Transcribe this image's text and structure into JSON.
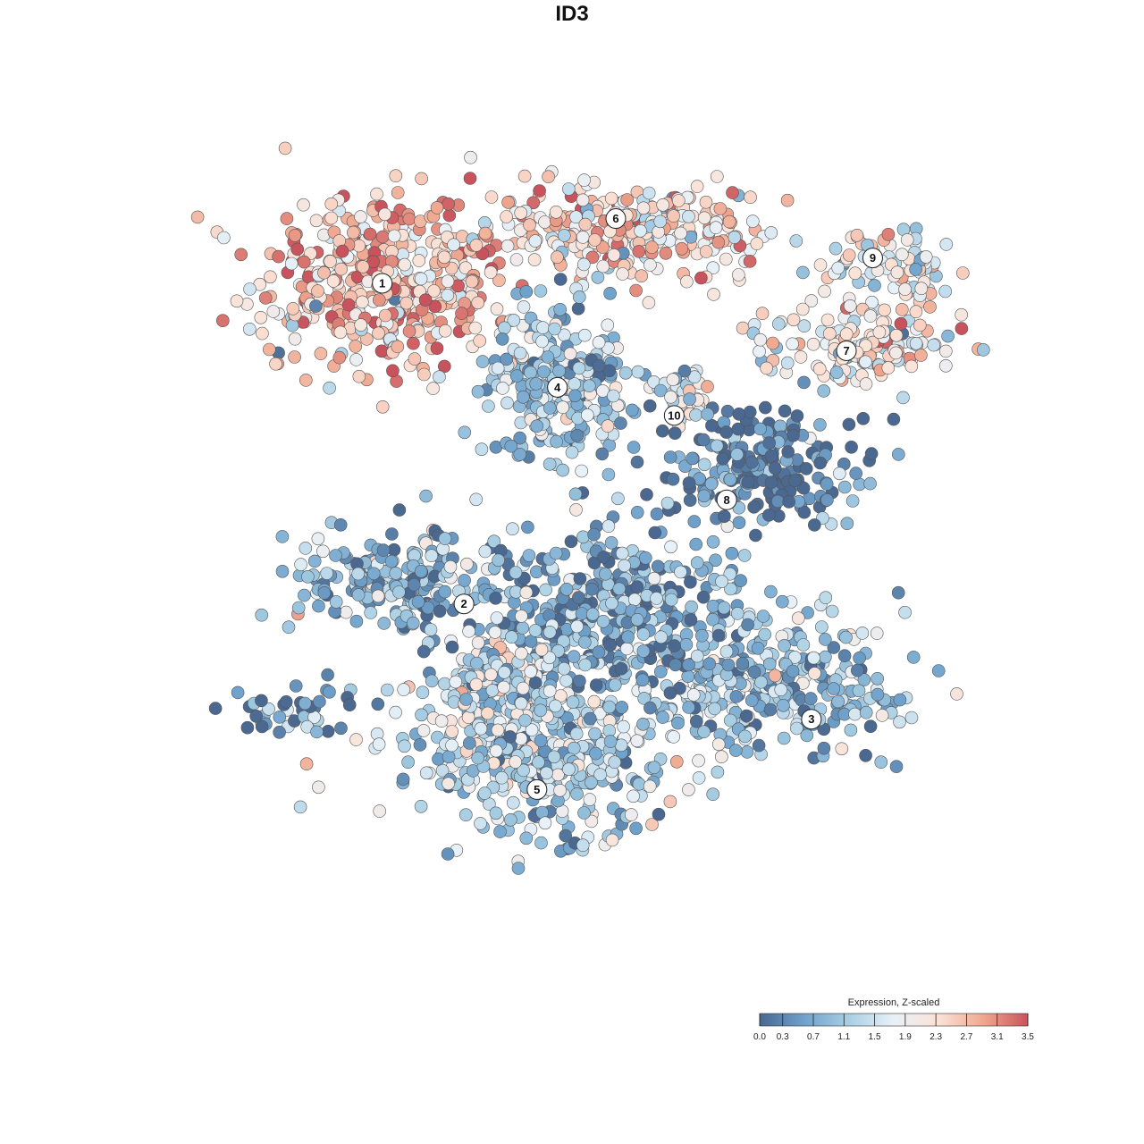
{
  "chart_data": {
    "type": "scatter",
    "title": "ID3",
    "legend": {
      "title": "Expression, Z-scaled",
      "ticks": [
        "0.0",
        "0.3",
        "0.7",
        "1.1",
        "1.5",
        "1.9",
        "2.3",
        "2.7",
        "3.1",
        "3.5"
      ],
      "range": [
        0.0,
        3.5
      ],
      "colors": [
        "#4a6890",
        "#6fa2cc",
        "#a9cfe4",
        "#e8f1f8",
        "#fbe2d6",
        "#f0a890",
        "#c9535c"
      ],
      "placement": "bottom-right"
    },
    "clusters": [
      {
        "label": "1",
        "cx": -6.5,
        "cy": 7.2,
        "sx": 2.2,
        "sy": 1.6,
        "mean": 2.6,
        "n": 420
      },
      {
        "label": "6",
        "cx": 2.0,
        "cy": 9.0,
        "sx": 2.6,
        "sy": 0.9,
        "mean": 2.3,
        "n": 300
      },
      {
        "label": "9",
        "cx": 11.0,
        "cy": 7.8,
        "sx": 1.1,
        "sy": 0.8,
        "mean": 2.0,
        "n": 90
      },
      {
        "label": "7",
        "cx": 10.0,
        "cy": 5.0,
        "sx": 1.7,
        "sy": 0.7,
        "mean": 2.0,
        "n": 150
      },
      {
        "label": "4",
        "cx": -0.5,
        "cy": 3.6,
        "sx": 1.2,
        "sy": 1.3,
        "mean": 1.1,
        "n": 260
      },
      {
        "label": "10",
        "cx": 3.8,
        "cy": 3.3,
        "sx": 0.5,
        "sy": 0.6,
        "mean": 1.8,
        "n": 40
      },
      {
        "label": "8",
        "cx": 6.5,
        "cy": 0.8,
        "sx": 1.9,
        "sy": 1.1,
        "mean": 0.2,
        "n": 220
      },
      {
        "label": "2",
        "cx": -5.8,
        "cy": -3.4,
        "sx": 1.9,
        "sy": 1.0,
        "mean": 0.8,
        "n": 220
      },
      {
        "label": "3",
        "cx": 6.8,
        "cy": -7.2,
        "sx": 2.4,
        "sy": 1.2,
        "mean": 1.0,
        "n": 320
      },
      {
        "label": "5",
        "cx": -1.0,
        "cy": -9.5,
        "sx": 2.3,
        "sy": 1.3,
        "mean": 1.2,
        "n": 420
      },
      {
        "label": "",
        "cx": 1.5,
        "cy": -4.5,
        "sx": 2.2,
        "sy": 1.5,
        "mean": 0.6,
        "n": 360
      },
      {
        "label": "",
        "cx": -2.4,
        "cy": -6.8,
        "sx": 1.2,
        "sy": 1.2,
        "mean": 1.5,
        "n": 160
      },
      {
        "label": "",
        "cx": -9.5,
        "cy": -8.0,
        "sx": 1.0,
        "sy": 0.6,
        "mean": 0.5,
        "n": 40
      }
    ],
    "label_positions": [
      {
        "label": "1",
        "x": -6.5,
        "y": 7.2
      },
      {
        "label": "6",
        "x": 1.5,
        "y": 9.5
      },
      {
        "label": "9",
        "x": 10.3,
        "y": 8.1
      },
      {
        "label": "7",
        "x": 9.4,
        "y": 4.8
      },
      {
        "label": "4",
        "x": -0.5,
        "y": 3.5
      },
      {
        "label": "10",
        "x": 3.5,
        "y": 2.5
      },
      {
        "label": "8",
        "x": 5.3,
        "y": -0.5
      },
      {
        "label": "2",
        "x": -3.7,
        "y": -4.2
      },
      {
        "label": "3",
        "x": 8.2,
        "y": -8.3
      },
      {
        "label": "5",
        "x": -1.2,
        "y": -10.8
      }
    ],
    "xlim": [
      -15,
      15
    ],
    "ylim": [
      -18,
      16
    ],
    "grid": false,
    "xlabel": "",
    "ylabel": ""
  }
}
